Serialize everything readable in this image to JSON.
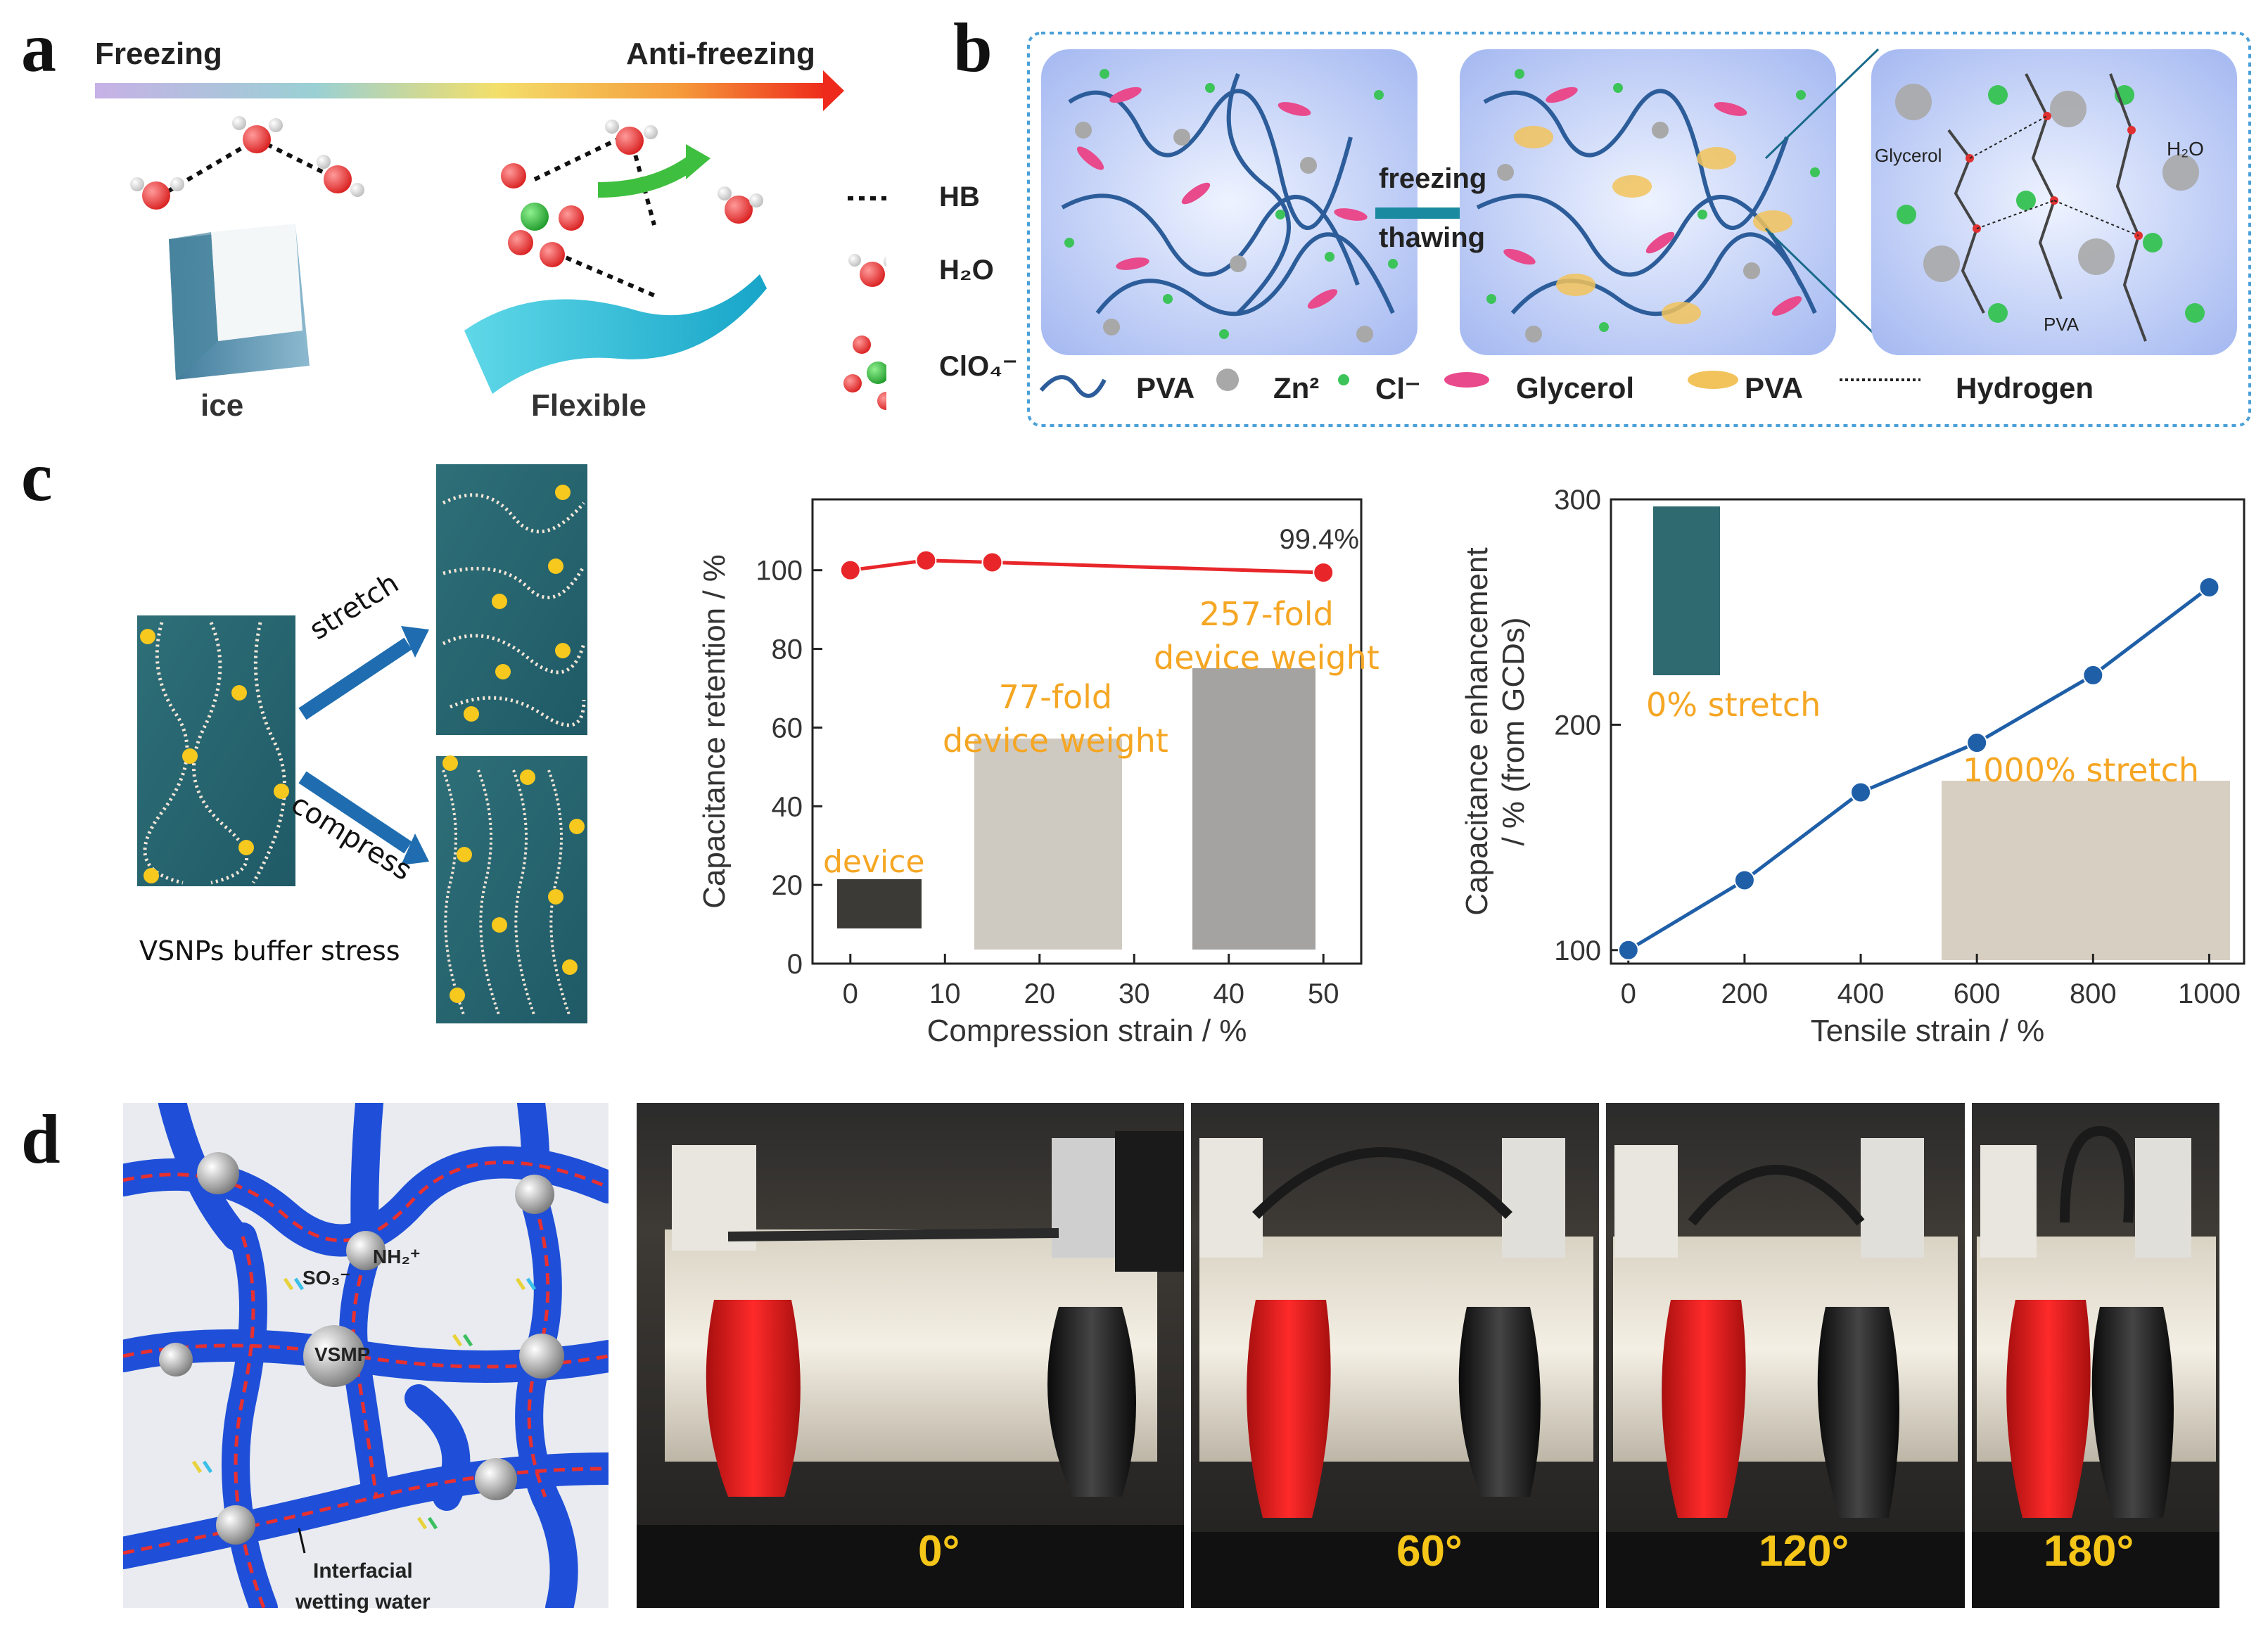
{
  "panels": {
    "a": "a",
    "b": "b",
    "c": "c",
    "d": "d"
  },
  "colors": {
    "accent_red": "#e8262a",
    "accent_blue": "#1f5fa8",
    "hand_orange": "#f5a623",
    "gel_blue": "#1f4fd8"
  },
  "panel_a": {
    "freezing": "Freezing",
    "anti_freezing": "Anti-freezing",
    "ice": "ice",
    "flexible": "Flexible",
    "legend": {
      "hb": "HB",
      "h2o": "H₂O",
      "clo4": "ClO₄⁻"
    }
  },
  "panel_b": {
    "freezing": "freezing",
    "thawing": "thawing",
    "glycerol_label": "Glycerol",
    "h2o_label": "H₂O",
    "pva_label": "PVA",
    "legend": {
      "pva_chain": "PVA",
      "zn": "Zn²",
      "cl": "Cl⁻",
      "glycerol": "Glycerol",
      "pva_crystal": "PVA",
      "hydrogen": "Hydrogen"
    }
  },
  "panel_c": {
    "stretch": "stretch",
    "compress": "compress",
    "caption": "VSNPs buffer stress",
    "device": "device",
    "fold77": "77-fold\ndevice weight",
    "fold257": "257-fold\ndevice weight",
    "stretch0": "0% stretch",
    "stretch1000": "1000% stretch"
  },
  "chart_data": [
    {
      "type": "line",
      "x": [
        0,
        8,
        15,
        50
      ],
      "series": [
        {
          "values": [
            100,
            102.5,
            102,
            99.4
          ]
        }
      ],
      "xlabel": "Compression strain / %",
      "ylabel": "Capacitance retention / %",
      "xticks": [
        0,
        10,
        20,
        30,
        40,
        50
      ],
      "yticks": [
        0,
        20,
        40,
        60,
        80,
        100
      ],
      "xlim": [
        -4,
        54
      ],
      "ylim": [
        0,
        118
      ],
      "annotation": "99.4%",
      "color": "#e8262a"
    },
    {
      "type": "line",
      "x": [
        0,
        200,
        400,
        600,
        800,
        1000
      ],
      "series": [
        {
          "values": [
            100,
            131,
            170,
            192,
            222,
            261
          ]
        }
      ],
      "xlabel": "Tensile strain / %",
      "ylabel": "Capacitance enhancement\n/ % (from GCDs)",
      "xticks": [
        0,
        200,
        400,
        600,
        800,
        1000
      ],
      "yticks": [
        100,
        200,
        300
      ],
      "xlim": [
        -30,
        1060
      ],
      "ylim": [
        94,
        300
      ],
      "color": "#1f5fa8"
    }
  ],
  "panel_d": {
    "so3": "SO₃⁻",
    "nh2": "NH₂⁺",
    "vsmp": "VSMP",
    "interfacial": "Interfacial\nwetting water",
    "angles": [
      "0°",
      "60°",
      "120°",
      "180°"
    ]
  }
}
